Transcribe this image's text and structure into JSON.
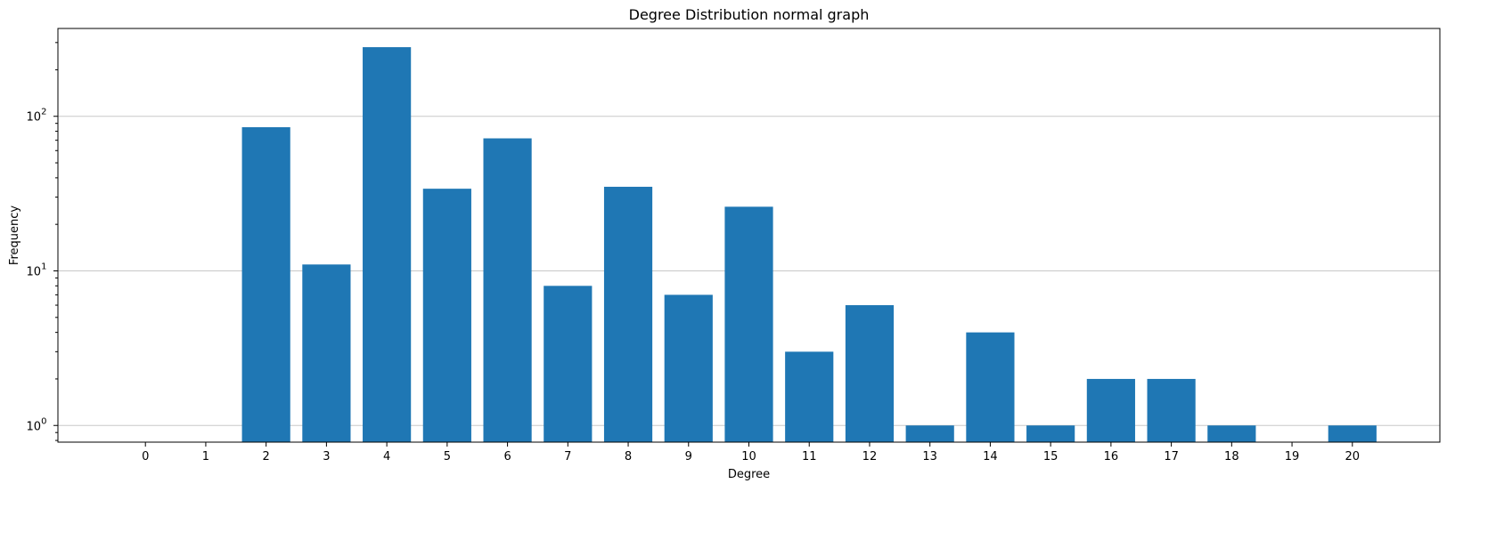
{
  "chart_data": {
    "type": "bar",
    "title": "Degree Distribution normal graph",
    "xlabel": "Degree",
    "ylabel": "Frequency",
    "yscale": "log",
    "ylim": [
      0.78,
      370
    ],
    "xlim": [
      -1.45,
      21.45
    ],
    "grid": "y-major",
    "bar_color": "#1f77b4",
    "grid_color": "#c8c8c8",
    "categories": [
      0,
      1,
      2,
      3,
      4,
      5,
      6,
      7,
      8,
      9,
      10,
      11,
      12,
      13,
      14,
      15,
      16,
      17,
      18,
      19,
      20
    ],
    "values": [
      0,
      0,
      85,
      11,
      280,
      34,
      72,
      8,
      35,
      7,
      26,
      3,
      6,
      1,
      4,
      1,
      2,
      2,
      1,
      0,
      1
    ],
    "yticks": [
      {
        "value": 1,
        "base": "10",
        "exp": "0"
      },
      {
        "value": 10,
        "base": "10",
        "exp": "1"
      },
      {
        "value": 100,
        "base": "10",
        "exp": "2"
      }
    ]
  }
}
